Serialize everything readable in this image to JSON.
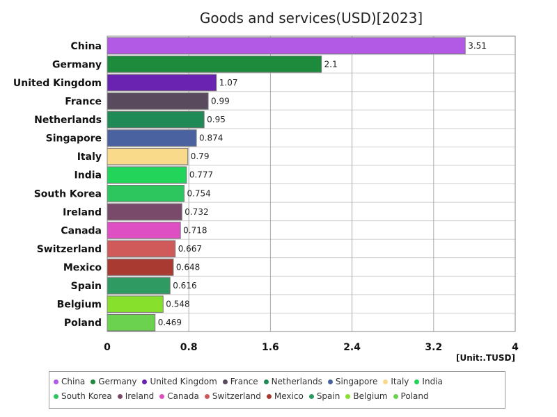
{
  "chart_data": {
    "type": "bar",
    "orientation": "horizontal",
    "title": "Goods and services(USD)[2023]",
    "unit_label": "[Unit:.TUSD]",
    "categories": [
      "China",
      "Germany",
      "United Kingdom",
      "France",
      "Netherlands",
      "Singapore",
      "Italy",
      "India",
      "South Korea",
      "Ireland",
      "Canada",
      "Switzerland",
      "Mexico",
      "Spain",
      "Belgium",
      "Poland"
    ],
    "values": [
      3.51,
      2.1,
      1.07,
      0.99,
      0.95,
      0.874,
      0.79,
      0.777,
      0.754,
      0.732,
      0.718,
      0.667,
      0.648,
      0.616,
      0.548,
      0.469
    ],
    "value_labels": [
      "3.51",
      "2.1",
      "1.07",
      "0.99",
      "0.95",
      "0.874",
      "0.79",
      "0.777",
      "0.754",
      "0.732",
      "0.718",
      "0.667",
      "0.648",
      "0.616",
      "0.548",
      "0.469"
    ],
    "colors": [
      "#b25ae6",
      "#1e8a3c",
      "#6a22b0",
      "#5a4a5e",
      "#1f8a55",
      "#4a62a0",
      "#f9d98a",
      "#22d45a",
      "#2dc65e",
      "#7a4a6a",
      "#dd4fc2",
      "#d05a5a",
      "#a83a32",
      "#2f9a62",
      "#86e02c",
      "#6ad24e"
    ],
    "xlim": [
      0,
      4
    ],
    "xticks": [
      0,
      0.8,
      1.6,
      2.4,
      3.2,
      4
    ],
    "xtick_labels": [
      "0",
      "0.8",
      "1.6",
      "2.4",
      "3.2",
      "4"
    ],
    "grid": true,
    "legend_position": "bottom"
  }
}
